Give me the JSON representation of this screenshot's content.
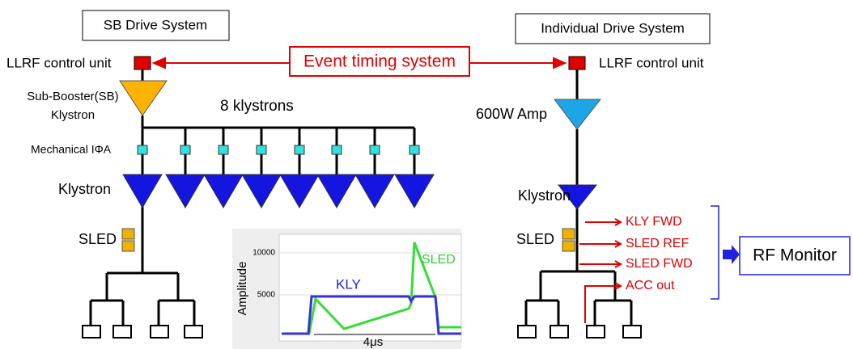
{
  "header": {
    "left_system": "SB Drive System",
    "right_system": "Individual Drive System"
  },
  "event_timing": "Event timing system",
  "left": {
    "llrf": "LLRF control unit",
    "sub_booster": [
      "Sub-Booster(SB)",
      "Klystron"
    ],
    "count_label": "8 klystrons",
    "phase": "Mechanical IΦA",
    "klystron": "Klystron",
    "sled": "SLED"
  },
  "right": {
    "llrf": "LLRF control unit",
    "amp": "600W Amp",
    "klystron": "Klystron",
    "sled": "SLED",
    "signals": [
      "KLY FWD",
      "SLED REF",
      "SLED FWD",
      "ACC out"
    ],
    "monitor": "RF Monitor"
  },
  "inset": {
    "y_label": "Amplitude",
    "yticks": [
      "10000",
      "5000"
    ],
    "kly": "KLY",
    "sled": "SLED",
    "width": "4μs"
  }
}
